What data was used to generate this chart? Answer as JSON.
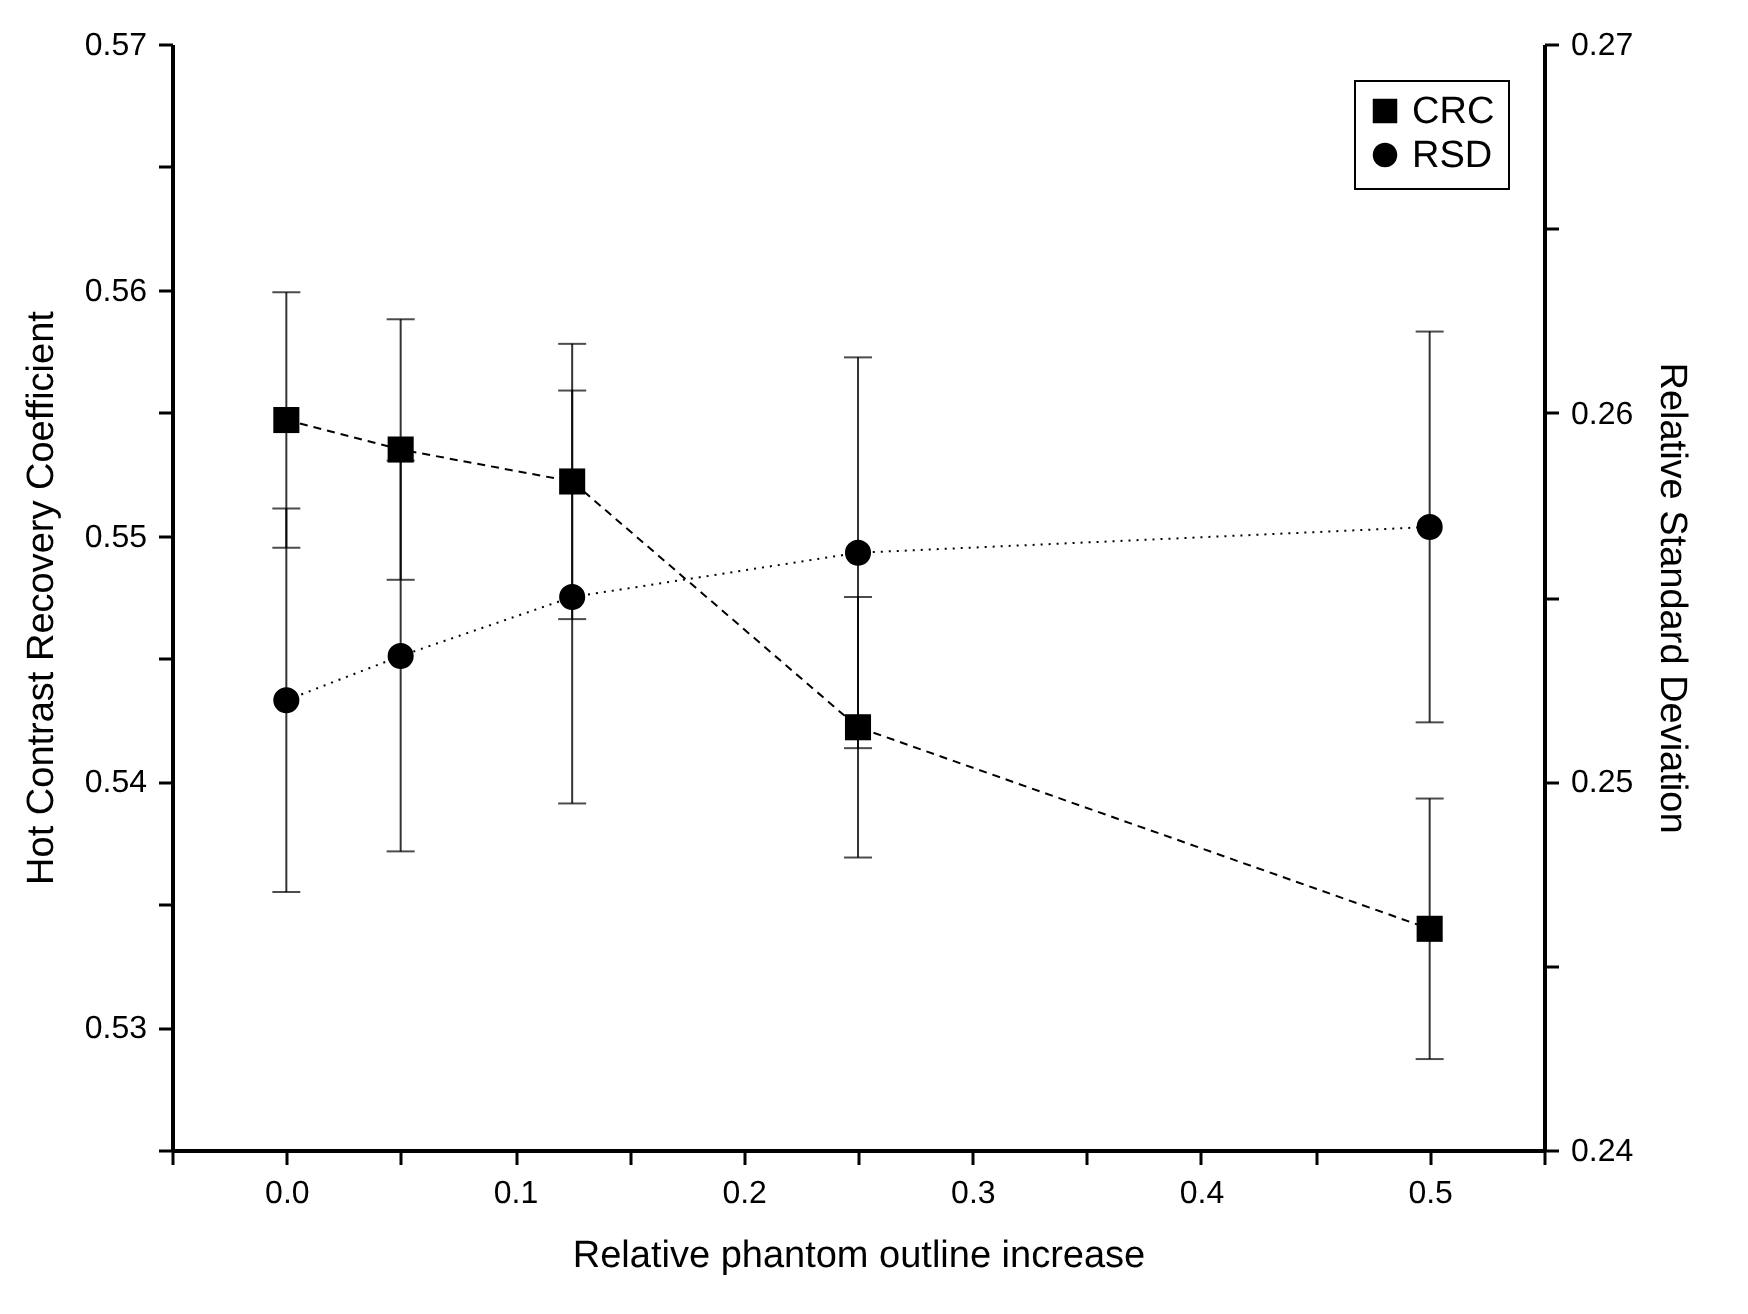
{
  "chart_data": {
    "type": "line",
    "xlabel": "Relative phantom outline increase",
    "ylabel": "Hot Contrast Recovery Coefficient",
    "y2label": "Relative Standard Deviation",
    "x": [
      0,
      0.05,
      0.125,
      0.25,
      0.5
    ],
    "xlim": [
      -0.05,
      0.55
    ],
    "xticks": [
      {
        "value": -0.05,
        "label": null
      },
      {
        "value": 0,
        "label": "0.0"
      },
      {
        "value": 0.05,
        "label": null
      },
      0.1,
      {
        "value": 0.15,
        "label": null
      },
      0.2,
      {
        "value": 0.25,
        "label": null
      },
      0.3,
      {
        "value": 0.35,
        "label": null
      },
      0.4,
      {
        "value": 0.45,
        "label": null
      },
      0.5,
      {
        "value": 0.55,
        "label": null
      }
    ],
    "ylim": [
      0.525,
      0.57
    ],
    "yticks": [
      {
        "value": 0.525,
        "label": null
      },
      0.53,
      {
        "value": 0.535,
        "label": null
      },
      0.54,
      {
        "value": 0.545,
        "label": null
      },
      0.55,
      {
        "value": 0.555,
        "label": null
      },
      0.56,
      {
        "value": 0.565,
        "label": null
      },
      0.57
    ],
    "y2lim": [
      0.24,
      0.27
    ],
    "y2ticks": [
      0.24,
      {
        "value": 0.245,
        "label": null
      },
      0.25,
      {
        "value": 0.255,
        "label": null
      },
      0.26,
      {
        "value": 0.265,
        "label": null
      },
      0.27
    ],
    "legend": "top right",
    "grid": false,
    "series": [
      {
        "name": "CRC",
        "color": "#000000",
        "marker": "square",
        "line_style": "dashed",
        "values": [
          0.5547,
          0.5535,
          0.5522,
          0.5422,
          0.534
        ],
        "errors": [
          0.0052,
          0.0053,
          0.0056,
          0.0053,
          0.0053
        ]
      },
      {
        "name": "RSD",
        "color": "#000000",
        "marker": "circle",
        "line_style": "dotted",
        "axis": "y2",
        "values": [
          0.2522,
          0.2534,
          0.255,
          0.2562,
          0.2569
        ],
        "errors": [
          0.0052,
          0.0053,
          0.0056,
          0.0053,
          0.0053
        ]
      }
    ]
  }
}
